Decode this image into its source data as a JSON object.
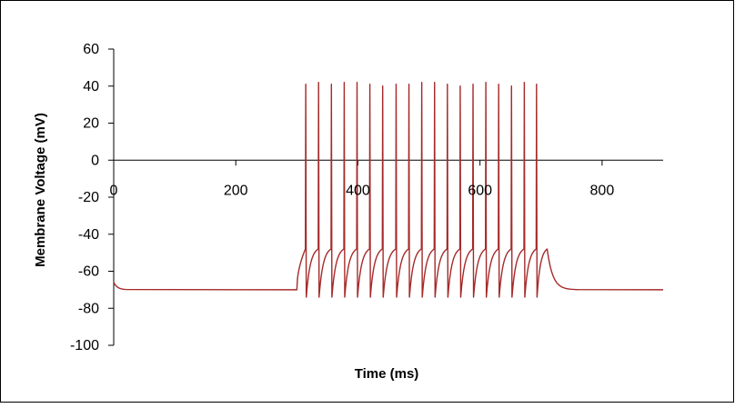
{
  "chart_data": {
    "type": "line",
    "title": "",
    "xlabel": "Time (ms)",
    "ylabel": "Membrane Voltage (mV)",
    "xlim": [
      0,
      900
    ],
    "ylim": [
      -100,
      60
    ],
    "x_ticks": [
      0,
      200,
      400,
      600,
      800
    ],
    "y_ticks": [
      60,
      40,
      20,
      0,
      -20,
      -40,
      -60,
      -80,
      -100
    ],
    "x_tick_labels": [
      "0",
      "200",
      "400",
      "600",
      "800"
    ],
    "y_tick_labels": [
      "60",
      "40",
      "20",
      "0",
      "-20",
      "-40",
      "-60",
      "-80",
      "-100"
    ],
    "grid": false,
    "legend": false,
    "series_color": "#A52A2A",
    "stimulus_window_ms": [
      300,
      700
    ],
    "resting_potential_mv": -70,
    "spike_times_ms": [
      314,
      335,
      356,
      377,
      398,
      419,
      440,
      462,
      483,
      504,
      525,
      546,
      567,
      588,
      609,
      630,
      651,
      672,
      692
    ],
    "spike_peaks_mv": [
      41,
      42,
      41,
      42,
      42,
      41,
      40,
      41,
      41,
      42,
      42,
      41,
      40,
      41,
      42,
      41,
      40,
      42,
      41
    ],
    "afterhyperpolarization_mv": -74,
    "spike_threshold_mv": -48
  }
}
